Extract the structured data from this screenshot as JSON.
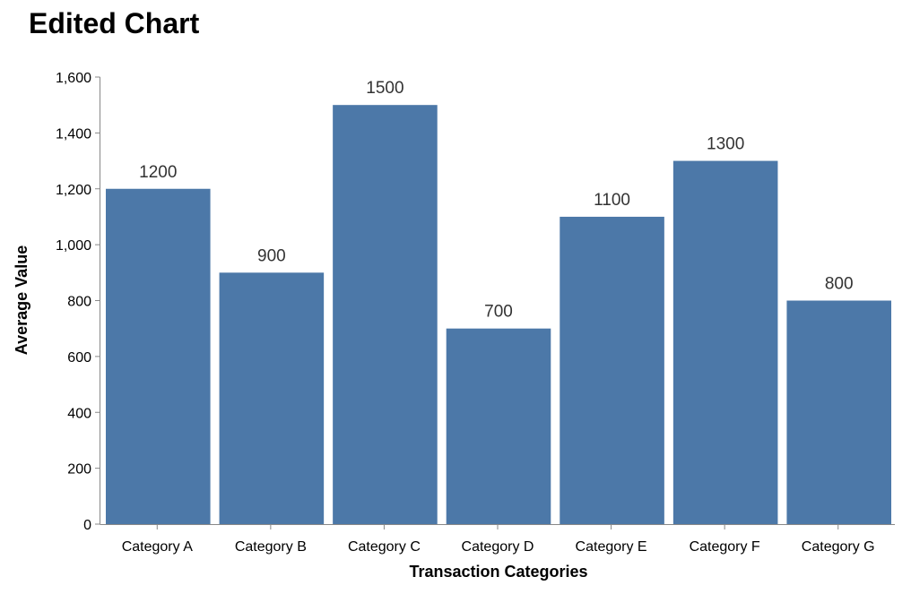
{
  "chart_data": {
    "type": "bar",
    "title": "Edited Chart",
    "xlabel": "Transaction Categories",
    "ylabel": "Average Value",
    "categories": [
      "Category A",
      "Category B",
      "Category C",
      "Category D",
      "Category E",
      "Category F",
      "Category G"
    ],
    "values": [
      1200,
      900,
      1500,
      700,
      1100,
      1300,
      800
    ],
    "data_labels": [
      "1200",
      "900",
      "1500",
      "700",
      "1100",
      "1300",
      "800"
    ],
    "ylim": [
      0,
      1600
    ],
    "yticks": [
      0,
      200,
      400,
      600,
      800,
      1000,
      1200,
      1400,
      1600
    ],
    "ytick_labels": [
      "0",
      "200",
      "400",
      "600",
      "800",
      "1,000",
      "1,200",
      "1,400",
      "1,600"
    ],
    "grid": false,
    "legend": "none",
    "bar_color": "#4c78a8"
  }
}
